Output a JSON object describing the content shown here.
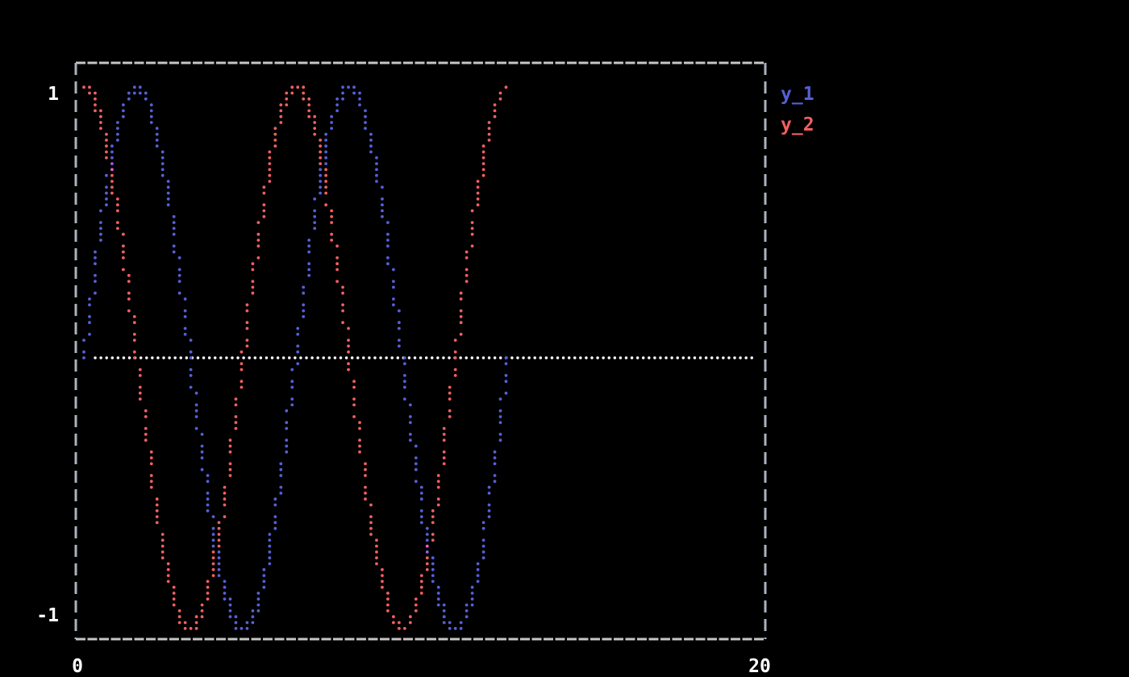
{
  "window": {
    "background": "#000000",
    "frame_color_horizontal": "#c6c6c6",
    "frame_color_vertical": "#aab2bd",
    "label_color": "#ffffff"
  },
  "chart_data": {
    "type": "scatter",
    "title": "",
    "xlabel": "",
    "ylabel": "",
    "xlim": [
      0,
      20
    ],
    "ylim": [
      -1,
      1
    ],
    "grid": false,
    "x_ticks": [
      {
        "value": 0,
        "label": "0"
      },
      {
        "value": 20,
        "label": "20"
      }
    ],
    "y_ticks": [
      {
        "value": 1,
        "label": "1"
      },
      {
        "value": -1,
        "label": "-1"
      }
    ],
    "x_min": 0,
    "x_max": 12.566370614,
    "n_points": 400,
    "series": [
      {
        "name": "y_1",
        "fn": "sin",
        "color": "#5560d8"
      },
      {
        "name": "y_2",
        "fn": "cos",
        "color": "#f25f5f"
      }
    ],
    "overlap_colors": [
      "#ef5fd0",
      "#8f63e8"
    ],
    "zero_line": {
      "visible": true,
      "color": "#ffffff",
      "y": 0
    },
    "legend": {
      "position": "top-right",
      "entries": [
        {
          "label": "y_1",
          "color": "#5560d8"
        },
        {
          "label": "y_2",
          "color": "#f25f5f"
        }
      ]
    }
  }
}
